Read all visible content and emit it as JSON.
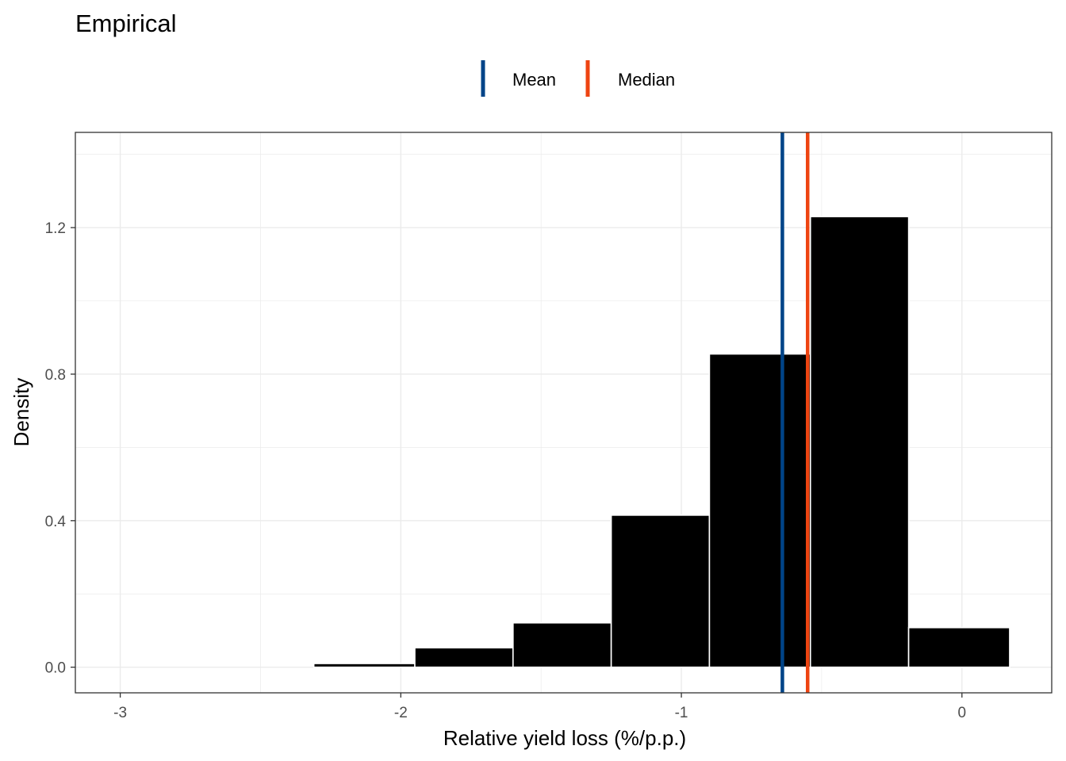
{
  "chart_data": {
    "type": "bar",
    "title": "Empirical",
    "xlabel": "Relative yield loss (%/p.p.)",
    "ylabel": "Density",
    "xlim": [
      -3.16,
      0.32
    ],
    "ylim": [
      -0.07,
      1.46
    ],
    "x_ticks": [
      -3,
      -2,
      -1,
      0
    ],
    "x_tick_labels": [
      "-3",
      "-2",
      "-1",
      "0"
    ],
    "y_ticks": [
      0.0,
      0.4,
      0.8,
      1.2
    ],
    "y_tick_labels": [
      "0.0",
      "0.4",
      "0.8",
      "1.2"
    ],
    "grid": true,
    "legend_position": "top",
    "bins": [
      {
        "x0": -3.01,
        "x1": -2.66,
        "value": 0.0
      },
      {
        "x0": -2.66,
        "x1": -2.31,
        "value": 0.0
      },
      {
        "x0": -2.31,
        "x1": -1.95,
        "value": 0.01
      },
      {
        "x0": -1.95,
        "x1": -1.6,
        "value": 0.053
      },
      {
        "x0": -1.6,
        "x1": -1.25,
        "value": 0.121
      },
      {
        "x0": -1.25,
        "x1": -0.9,
        "value": 0.415
      },
      {
        "x0": -0.9,
        "x1": -0.54,
        "value": 0.855
      },
      {
        "x0": -0.54,
        "x1": -0.19,
        "value": 1.23
      },
      {
        "x0": -0.19,
        "x1": 0.17,
        "value": 0.108
      }
    ],
    "series": [
      {
        "name": "Mean",
        "value": -0.64,
        "color": "#004488"
      },
      {
        "name": "Median",
        "value": -0.55,
        "color": "#EE4411"
      }
    ],
    "bar_color": "#000000",
    "bar_outline": "#ffffff",
    "grid_color": "#ebebeb"
  }
}
